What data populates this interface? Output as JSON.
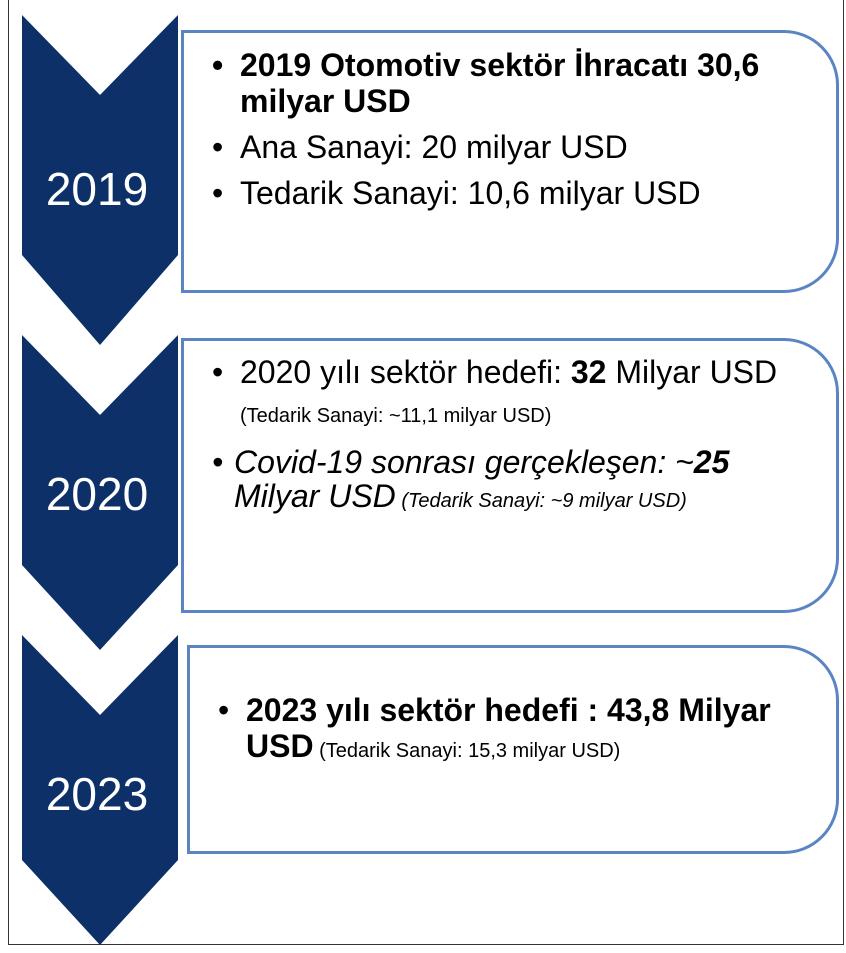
{
  "stages": [
    {
      "year": "2019",
      "bullets": [
        [
          "2019 Otomotiv sektör İhracatı 30,6 milyar USD"
        ],
        [
          "Ana Sanayi: 20 milyar USD"
        ],
        [
          "Tedarik Sanayi: 10,6 milyar USD"
        ]
      ]
    },
    {
      "year": "2020",
      "bullets": [
        [
          "2020 yılı sektör hedefi: ",
          "32",
          " Milyar USD",
          " (Tedarik Sanayi: ~11,1 milyar USD)"
        ],
        [
          "Covid-19 sonrası gerçekleşen: ~",
          "25",
          " Milyar USD",
          " (Tedarik Sanayi: ~9 milyar USD)"
        ]
      ]
    },
    {
      "year": "2023",
      "bullets": [
        [
          "2023 yılı sektör hedefi : 43,8 Milyar USD",
          " (Tedarik Sanayi: 15,3 milyar USD)"
        ]
      ]
    }
  ]
}
